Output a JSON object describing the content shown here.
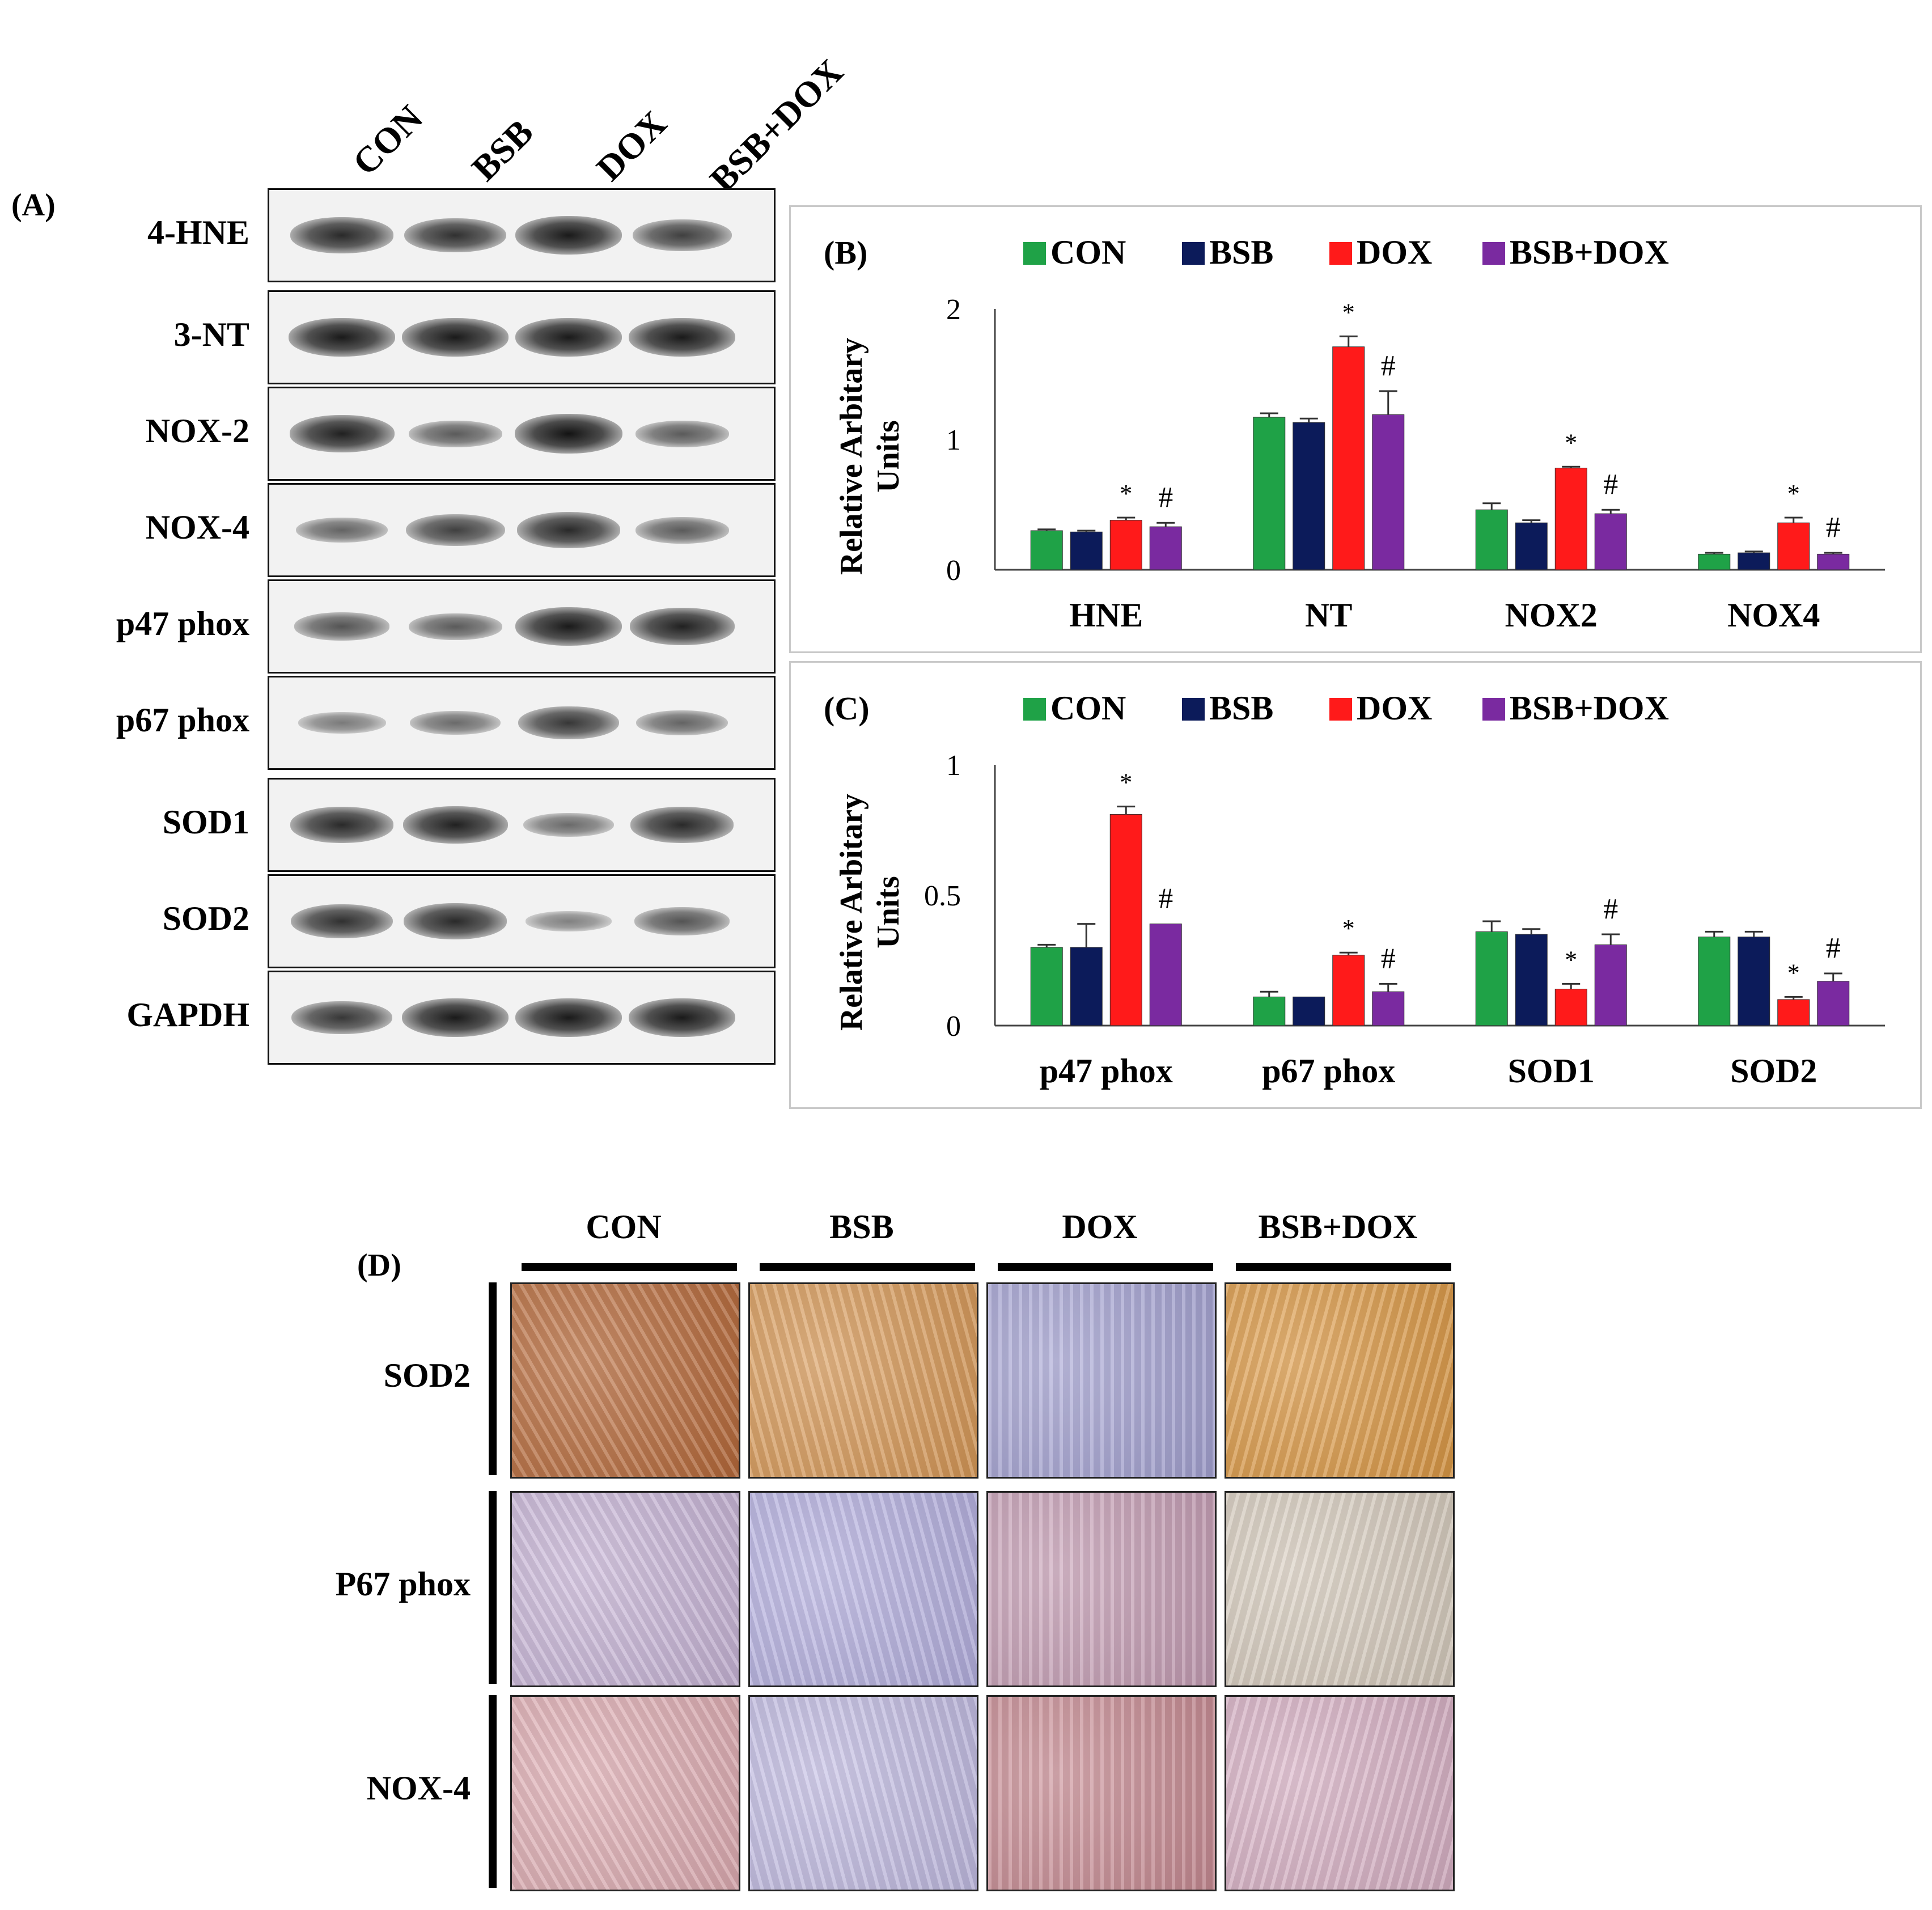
{
  "panelA": {
    "label": "(A)",
    "lanes": [
      "CON",
      "BSB",
      "DOX",
      "BSB+DOX"
    ],
    "blots": [
      {
        "name": "4-HNE",
        "intensity": [
          0.85,
          0.8,
          0.95,
          0.7
        ]
      },
      {
        "name": "3-NT",
        "intensity": [
          0.95,
          0.95,
          0.95,
          0.95
        ]
      },
      {
        "name": "NOX-2",
        "intensity": [
          0.9,
          0.5,
          1.0,
          0.5
        ]
      },
      {
        "name": "NOX-4",
        "intensity": [
          0.45,
          0.7,
          0.85,
          0.5
        ]
      },
      {
        "name": "p47 phox",
        "intensity": [
          0.55,
          0.5,
          0.95,
          0.9
        ]
      },
      {
        "name": "p67 phox",
        "intensity": [
          0.3,
          0.4,
          0.75,
          0.45
        ]
      },
      {
        "name": "SOD1",
        "intensity": [
          0.85,
          0.9,
          0.4,
          0.85
        ]
      },
      {
        "name": "SOD2",
        "intensity": [
          0.8,
          0.85,
          0.25,
          0.55
        ]
      },
      {
        "name": "GAPDH",
        "intensity": [
          0.75,
          0.95,
          0.95,
          0.95
        ]
      }
    ]
  },
  "colors": {
    "CON": "#1fa247",
    "BSB": "#0c1b5a",
    "DOX": "#ff1a1a",
    "BSB+DOX": "#7a2aa0"
  },
  "chart_data": [
    {
      "panel": "(B)",
      "type": "bar",
      "ylabel": "Relative Arbitary Units",
      "ylim": [
        0,
        2
      ],
      "yticks": [
        "0",
        "1",
        "2"
      ],
      "categories": [
        "HNE",
        "NT",
        "NOX2",
        "NOX4"
      ],
      "series": [
        {
          "name": "CON",
          "values": [
            0.3,
            1.17,
            0.46,
            0.12
          ],
          "errors": [
            0.01,
            0.03,
            0.05,
            0.01
          ],
          "marks": [
            "",
            "",
            "",
            ""
          ]
        },
        {
          "name": "BSB",
          "values": [
            0.29,
            1.13,
            0.36,
            0.13
          ],
          "errors": [
            0.01,
            0.03,
            0.02,
            0.01
          ],
          "marks": [
            "",
            "",
            "",
            ""
          ]
        },
        {
          "name": "DOX",
          "values": [
            0.38,
            1.71,
            0.78,
            0.36
          ],
          "errors": [
            0.02,
            0.08,
            0.01,
            0.04
          ],
          "marks": [
            "*",
            "*",
            "*",
            "*"
          ]
        },
        {
          "name": "BSB+DOX",
          "values": [
            0.33,
            1.19,
            0.43,
            0.12
          ],
          "errors": [
            0.03,
            0.18,
            0.03,
            0.01
          ],
          "marks": [
            "#",
            "#",
            "#",
            "#"
          ]
        }
      ]
    },
    {
      "panel": "(C)",
      "type": "bar",
      "ylabel": "Relative Arbitary Units",
      "ylim": [
        0,
        1
      ],
      "yticks": [
        "0",
        "0.5",
        "1"
      ],
      "categories": [
        "p47 phox",
        "p67 phox",
        "SOD1",
        "SOD2"
      ],
      "series": [
        {
          "name": "CON",
          "values": [
            0.3,
            0.11,
            0.36,
            0.34
          ],
          "errors": [
            0.01,
            0.02,
            0.04,
            0.02
          ],
          "marks": [
            "",
            "",
            "",
            ""
          ]
        },
        {
          "name": "BSB",
          "values": [
            0.3,
            0.11,
            0.35,
            0.34
          ],
          "errors": [
            0.09,
            0.0,
            0.02,
            0.02
          ],
          "marks": [
            "",
            "",
            "",
            ""
          ]
        },
        {
          "name": "DOX",
          "values": [
            0.81,
            0.27,
            0.14,
            0.1
          ],
          "errors": [
            0.03,
            0.01,
            0.02,
            0.01
          ],
          "marks": [
            "*",
            "*",
            "*",
            "*"
          ]
        },
        {
          "name": "BSB+DOX",
          "values": [
            0.39,
            0.13,
            0.31,
            0.17
          ],
          "errors": [
            0.0,
            0.03,
            0.04,
            0.03
          ],
          "marks": [
            "#",
            "#",
            "#",
            "#"
          ]
        }
      ]
    }
  ],
  "panelD": {
    "label": "(D)",
    "columns": [
      "CON",
      "BSB",
      "DOX",
      "BSB+DOX"
    ],
    "rows": [
      {
        "name": "SOD2",
        "tones": [
          "#b86a3a",
          "#d99a58",
          "#a6a4d4",
          "#dd9a46"
        ]
      },
      {
        "name": "P67 phox",
        "tones": [
          "#c9b6d8",
          "#b7b2e2",
          "#c79fb6",
          "#d8cdbf"
        ]
      },
      {
        "name": "NOX-4",
        "tones": [
          "#e0aeb4",
          "#c3bde4",
          "#c98c94",
          "#d9b2c6"
        ]
      }
    ]
  }
}
